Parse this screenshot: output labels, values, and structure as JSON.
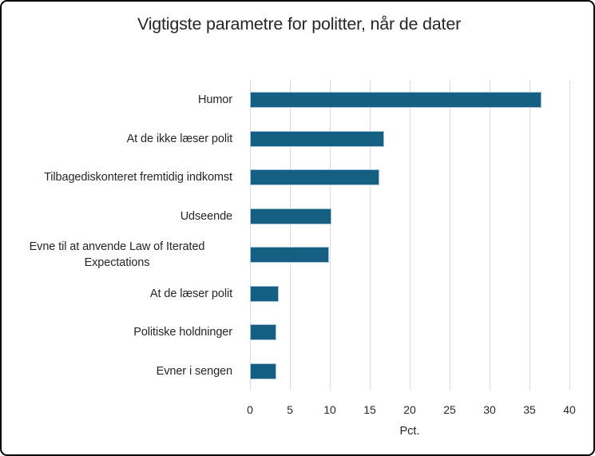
{
  "chart_data": {
    "type": "bar",
    "orientation": "horizontal",
    "title": "Vigtigste parametre for politter, når de dater",
    "xlabel": "Pct.",
    "categories": [
      "Humor",
      "At de ikke læser polit",
      "Tilbagediskonteret fremtidig indkomst",
      "Udseende",
      "Evne til at anvende Law of Iterated Expectations",
      "At de læser polit",
      "Politiske holdninger",
      "Evner i sengen"
    ],
    "values": [
      36.5,
      16.8,
      16.2,
      10.2,
      9.9,
      3.6,
      3.3,
      3.3
    ],
    "xlim": [
      0,
      40
    ],
    "xticks": [
      0,
      5,
      10,
      15,
      20,
      25,
      30,
      35,
      40
    ],
    "grid": true,
    "legend": false,
    "colors": {
      "bar_fill": "#156082",
      "bar_border": "#A3C4D4",
      "gridline": "#D9D9D9",
      "text": "#262626",
      "background": "#FFFFFF",
      "frame_border": "#000000"
    }
  }
}
